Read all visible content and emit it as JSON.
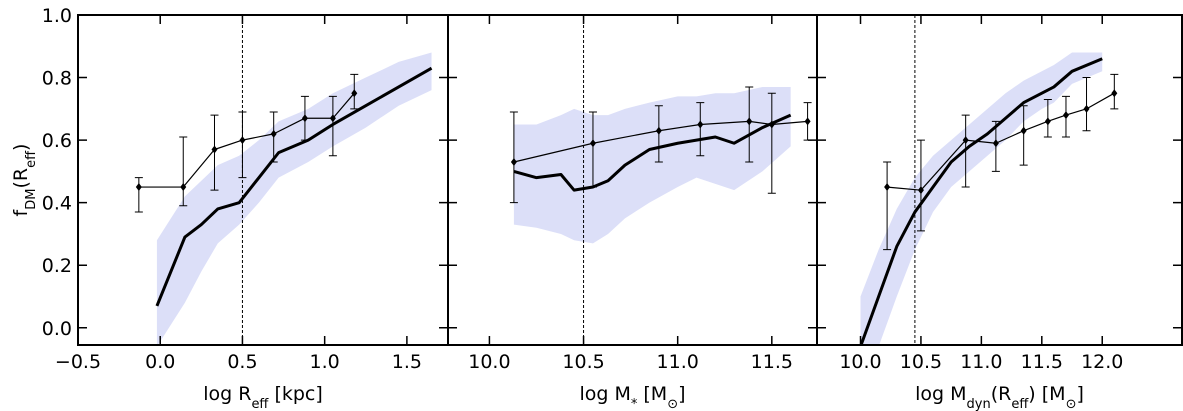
{
  "chart_data": [
    {
      "type": "line",
      "ylim": [
        -0.055,
        1.0
      ],
      "yticks": [
        {
          "value": 0.0,
          "label": "0.0"
        },
        {
          "value": 0.2,
          "label": "0.2"
        },
        {
          "value": 0.4,
          "label": "0.4"
        },
        {
          "value": 0.6,
          "label": "0.6"
        },
        {
          "value": 0.8,
          "label": "0.8"
        },
        {
          "value": 1.0,
          "label": "1.0"
        }
      ],
      "y_label": [
        {
          "text": "f"
        },
        {
          "text": "DM",
          "sub": true
        },
        {
          "text": "(R"
        },
        {
          "text": "eff",
          "sub": true
        },
        {
          "text": ")"
        }
      ],
      "xlim": [
        -0.5,
        1.75
      ],
      "xticks": [
        {
          "value": -0.5,
          "label": "−0.5"
        },
        {
          "value": 0.0,
          "label": "0.0"
        },
        {
          "value": 0.5,
          "label": "0.5"
        },
        {
          "value": 1.0,
          "label": "1.0"
        },
        {
          "value": 1.5,
          "label": "1.5"
        }
      ],
      "x_label": [
        {
          "text": "log R"
        },
        {
          "text": "eff",
          "sub": true
        },
        {
          "text": " [kpc]"
        }
      ],
      "vline": 0.5,
      "band": {
        "color": "#dcdff8",
        "x": [
          -0.02,
          0.15,
          0.25,
          0.35,
          0.48,
          0.6,
          0.72,
          0.9,
          1.05,
          1.25,
          1.45,
          1.65
        ],
        "lower": [
          -0.06,
          0.08,
          0.18,
          0.27,
          0.33,
          0.4,
          0.48,
          0.53,
          0.58,
          0.64,
          0.71,
          0.76
        ],
        "upper": [
          0.28,
          0.42,
          0.47,
          0.52,
          0.55,
          0.6,
          0.66,
          0.7,
          0.75,
          0.8,
          0.85,
          0.88
        ]
      },
      "series": [
        {
          "color": "#000000",
          "line_width": 3,
          "x": [
            -0.02,
            0.15,
            0.25,
            0.35,
            0.48,
            0.6,
            0.72,
            0.9,
            1.05,
            1.25,
            1.45,
            1.65
          ],
          "values": [
            0.07,
            0.29,
            0.33,
            0.38,
            0.4,
            0.48,
            0.56,
            0.6,
            0.65,
            0.71,
            0.77,
            0.83
          ]
        },
        {
          "color": "#000000",
          "line_width": 1.2,
          "x": [
            -0.13,
            0.14,
            0.33,
            0.5,
            0.69,
            0.88,
            1.05,
            1.18
          ],
          "values": [
            0.45,
            0.45,
            0.57,
            0.6,
            0.62,
            0.67,
            0.67,
            0.75
          ],
          "lower": [
            0.37,
            0.39,
            0.44,
            0.48,
            0.53,
            0.6,
            0.55,
            0.7
          ],
          "upper": [
            0.48,
            0.61,
            0.68,
            0.69,
            0.69,
            0.74,
            0.74,
            0.81
          ]
        }
      ]
    },
    {
      "type": "line",
      "xlim": [
        9.78,
        11.74
      ],
      "xticks": [
        {
          "value": 10.0,
          "label": "10.0"
        },
        {
          "value": 10.5,
          "label": "10.5"
        },
        {
          "value": 11.0,
          "label": "11.0"
        },
        {
          "value": 11.5,
          "label": "11.5"
        }
      ],
      "x_label": [
        {
          "text": "log M"
        },
        {
          "text": "*",
          "sub": true
        },
        {
          "text": " [M"
        },
        {
          "text": "⊙",
          "sub": true
        },
        {
          "text": "]"
        }
      ],
      "vline": 10.5,
      "band": {
        "color": "#dcdff8",
        "x": [
          10.13,
          10.25,
          10.38,
          10.45,
          10.55,
          10.63,
          10.72,
          10.85,
          11.0,
          11.1,
          11.2,
          11.3,
          11.45,
          11.6
        ],
        "lower": [
          0.33,
          0.32,
          0.3,
          0.28,
          0.27,
          0.3,
          0.35,
          0.4,
          0.45,
          0.48,
          0.46,
          0.44,
          0.5,
          0.58
        ],
        "upper": [
          0.65,
          0.65,
          0.68,
          0.7,
          0.68,
          0.68,
          0.7,
          0.72,
          0.74,
          0.74,
          0.75,
          0.75,
          0.77,
          0.77
        ]
      },
      "series": [
        {
          "color": "#000000",
          "line_width": 3,
          "x": [
            10.13,
            10.25,
            10.38,
            10.45,
            10.55,
            10.63,
            10.72,
            10.85,
            11.0,
            11.1,
            11.2,
            11.3,
            11.45,
            11.6
          ],
          "values": [
            0.5,
            0.48,
            0.49,
            0.44,
            0.45,
            0.47,
            0.52,
            0.57,
            0.59,
            0.6,
            0.61,
            0.59,
            0.64,
            0.68
          ]
        },
        {
          "color": "#000000",
          "line_width": 1.2,
          "x": [
            10.13,
            10.55,
            10.9,
            11.12,
            11.38,
            11.5,
            11.69
          ],
          "values": [
            0.53,
            0.59,
            0.63,
            0.65,
            0.66,
            0.65,
            0.66
          ],
          "lower": [
            0.4,
            0.45,
            0.53,
            0.55,
            0.53,
            0.43,
            0.6
          ],
          "upper": [
            0.69,
            0.69,
            0.71,
            0.72,
            0.77,
            0.75,
            0.72
          ]
        }
      ]
    },
    {
      "type": "line",
      "xlim": [
        9.64,
        12.66
      ],
      "xticks": [
        {
          "value": 10.0,
          "label": "10.0"
        },
        {
          "value": 10.5,
          "label": "10.5"
        },
        {
          "value": 11.0,
          "label": "11.0"
        },
        {
          "value": 11.5,
          "label": "11.5"
        },
        {
          "value": 12.0,
          "label": "12.0"
        }
      ],
      "x_label": [
        {
          "text": "log M"
        },
        {
          "text": "dyn",
          "sub": true
        },
        {
          "text": "(R"
        },
        {
          "text": "eff",
          "sub": true
        },
        {
          "text": ") [M"
        },
        {
          "text": "⊙",
          "sub": true
        },
        {
          "text": "]"
        }
      ],
      "vline": 10.45,
      "band": {
        "color": "#dcdff8",
        "x": [
          10.0,
          10.15,
          10.3,
          10.45,
          10.6,
          10.75,
          10.9,
          11.05,
          11.2,
          11.35,
          11.5,
          11.6,
          11.75,
          12.0
        ],
        "lower": [
          -0.06,
          -0.06,
          0.1,
          0.25,
          0.37,
          0.45,
          0.5,
          0.55,
          0.6,
          0.66,
          0.7,
          0.72,
          0.78,
          0.82
        ],
        "upper": [
          0.1,
          0.25,
          0.38,
          0.48,
          0.55,
          0.6,
          0.65,
          0.7,
          0.75,
          0.79,
          0.82,
          0.84,
          0.88,
          0.88
        ]
      },
      "series": [
        {
          "color": "#000000",
          "line_width": 3,
          "x": [
            10.0,
            10.15,
            10.3,
            10.45,
            10.6,
            10.75,
            10.9,
            11.05,
            11.2,
            11.35,
            11.5,
            11.6,
            11.75,
            12.0
          ],
          "values": [
            -0.06,
            0.1,
            0.26,
            0.37,
            0.45,
            0.53,
            0.58,
            0.62,
            0.67,
            0.72,
            0.75,
            0.77,
            0.82,
            0.86
          ]
        },
        {
          "color": "#000000",
          "line_width": 1.2,
          "x": [
            10.22,
            10.5,
            10.87,
            11.12,
            11.35,
            11.55,
            11.7,
            11.87,
            12.1
          ],
          "values": [
            0.45,
            0.44,
            0.6,
            0.59,
            0.63,
            0.66,
            0.68,
            0.7,
            0.75
          ],
          "lower": [
            0.25,
            0.31,
            0.45,
            0.5,
            0.52,
            0.61,
            0.61,
            0.63,
            0.7
          ],
          "upper": [
            0.53,
            0.6,
            0.68,
            0.66,
            0.71,
            0.73,
            0.74,
            0.8,
            0.81
          ]
        }
      ]
    }
  ]
}
